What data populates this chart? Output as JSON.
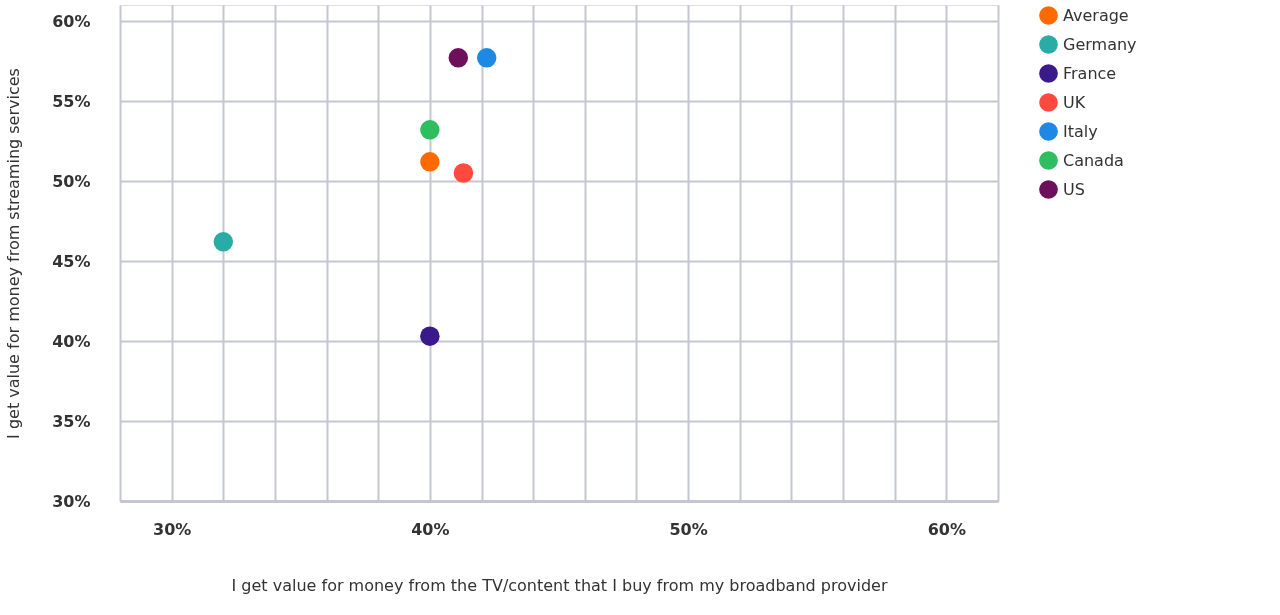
{
  "chart_data": {
    "type": "scatter",
    "xlabel": "I get value for money from the TV/content that I buy from my broadband provider",
    "ylabel": "I get value for money from streaming services",
    "xlim": [
      28,
      62
    ],
    "ylim": [
      30,
      61
    ],
    "xticks": [
      {
        "value": 28,
        "label": null
      },
      {
        "value": 30,
        "label": "30%"
      },
      {
        "value": 32,
        "label": null
      },
      {
        "value": 34,
        "label": null
      },
      {
        "value": 36,
        "label": null
      },
      {
        "value": 38,
        "label": null
      },
      {
        "value": 40,
        "label": "40%"
      },
      {
        "value": 42,
        "label": null
      },
      {
        "value": 44,
        "label": null
      },
      {
        "value": 46,
        "label": null
      },
      {
        "value": 48,
        "label": null
      },
      {
        "value": 50,
        "label": "50%"
      },
      {
        "value": 52,
        "label": null
      },
      {
        "value": 54,
        "label": null
      },
      {
        "value": 56,
        "label": null
      },
      {
        "value": 58,
        "label": null
      },
      {
        "value": 60,
        "label": "60%"
      },
      {
        "value": 62,
        "label": null
      }
    ],
    "yticks": [
      {
        "value": 30,
        "label": "30%"
      },
      {
        "value": 35,
        "label": "35%"
      },
      {
        "value": 40,
        "label": "40%"
      },
      {
        "value": 45,
        "label": "45%"
      },
      {
        "value": 50,
        "label": "50%"
      },
      {
        "value": 55,
        "label": "55%"
      },
      {
        "value": 60,
        "label": "60%"
      }
    ],
    "grid": true,
    "legend": "top right",
    "marker": "circle",
    "series": [
      {
        "name": "Average",
        "color": "#ff6a00",
        "x": [
          40
        ],
        "values": [
          51.2
        ]
      },
      {
        "name": "Germany",
        "color": "#2aaca6",
        "x": [
          32
        ],
        "values": [
          46.2
        ]
      },
      {
        "name": "France",
        "color": "#3a1a8a",
        "x": [
          40
        ],
        "values": [
          40.3
        ]
      },
      {
        "name": "UK",
        "color": "#ff4a3d",
        "x": [
          41.3
        ],
        "values": [
          50.5
        ]
      },
      {
        "name": "Italy",
        "color": "#1e88e5",
        "x": [
          42.2
        ],
        "values": [
          57.7
        ]
      },
      {
        "name": "Canada",
        "color": "#2ebd5f",
        "x": [
          40
        ],
        "values": [
          53.2
        ]
      },
      {
        "name": "US",
        "color": "#6e0f5c",
        "x": [
          41.1
        ],
        "values": [
          57.7
        ]
      }
    ]
  }
}
